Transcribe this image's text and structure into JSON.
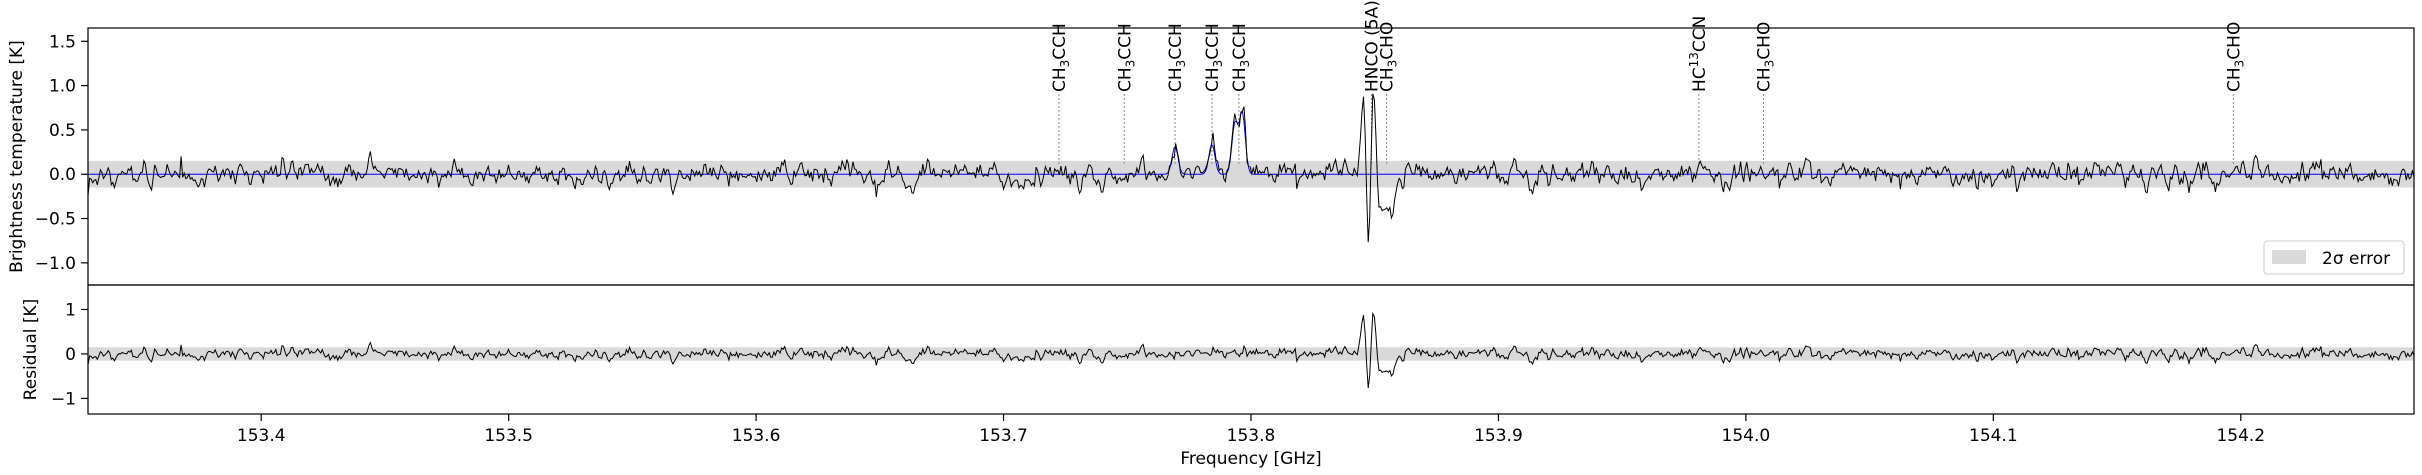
{
  "chart_data": [
    {
      "type": "line",
      "panel": "spectrum",
      "ylabel": "Brightness temperature [K]",
      "xlim": [
        153.33,
        154.27
      ],
      "ylim": [
        -1.25,
        1.65
      ],
      "yticks": [
        -1.0,
        -0.5,
        0.0,
        0.5,
        1.0,
        1.5
      ],
      "ytick_labels": [
        "−1.0",
        "−0.5",
        "0.0",
        "0.5",
        "1.0",
        "1.5"
      ],
      "error_band": [
        -0.15,
        0.15
      ],
      "legend": {
        "label": "2σ error",
        "placement": "lower-right"
      },
      "grid": false,
      "colors": {
        "data": "#000000",
        "model": "#0000ff",
        "band": "#d9d9d9",
        "marker": "#888888"
      },
      "line_markers": [
        {
          "freq": 153.7224,
          "label_main": "CH",
          "label_sub": "3",
          "label_tail": "CCH"
        },
        {
          "freq": 153.7488,
          "label_main": "CH",
          "label_sub": "3",
          "label_tail": "CCH"
        },
        {
          "freq": 153.7693,
          "label_main": "CH",
          "label_sub": "3",
          "label_tail": "CCH"
        },
        {
          "freq": 153.7842,
          "label_main": "CH",
          "label_sub": "3",
          "label_tail": "CCH"
        },
        {
          "freq": 153.7951,
          "label_main": "CH",
          "label_sub": "3",
          "label_tail": "CCH"
        },
        {
          "freq": 153.8487,
          "label_main": "HNCO (5A)",
          "label_sub": "",
          "label_tail": ""
        },
        {
          "freq": 153.8548,
          "label_main": "CH",
          "label_sub": "3",
          "label_tail": "CHO"
        },
        {
          "freq": 153.981,
          "label_main": "HC",
          "label_sup": "13",
          "label_tail": "CCN"
        },
        {
          "freq": 154.0071,
          "label_main": "CH",
          "label_sub": "3",
          "label_tail": "CHO"
        },
        {
          "freq": 154.197,
          "label_main": "CH",
          "label_sub": "3",
          "label_tail": "CHO"
        }
      ],
      "series": [
        {
          "name": "",
          "role": "observed",
          "note_seed": 11,
          "noise_sigma": 0.06
        },
        {
          "name": "",
          "role": "model"
        }
      ],
      "features": [
        {
          "freq": 153.7693,
          "amp": 0.33,
          "width": 0.0012
        },
        {
          "freq": 153.7842,
          "amp": 0.36,
          "width": 0.0012
        },
        {
          "freq": 153.7935,
          "amp": 0.6,
          "width": 0.0012
        },
        {
          "freq": 153.7965,
          "amp": 0.72,
          "width": 0.0012
        },
        {
          "freq": 153.8495,
          "amp": 1.1,
          "width": 0.001
        },
        {
          "freq": 153.8455,
          "amp": 0.95,
          "width": 0.001
        },
        {
          "freq": 153.8475,
          "amp": -1.05,
          "width": 0.0008
        },
        {
          "freq": 153.852,
          "amp": -0.45,
          "width": 0.0015
        },
        {
          "freq": 153.856,
          "amp": -0.45,
          "width": 0.002
        }
      ]
    },
    {
      "type": "line",
      "panel": "residual",
      "ylabel": "Residual [K]",
      "xlabel": "Frequency [GHz]",
      "xlim": [
        153.33,
        154.27
      ],
      "ylim": [
        -1.35,
        1.55
      ],
      "yticks": [
        -1,
        0,
        1
      ],
      "ytick_labels": [
        "−1",
        "0",
        "1"
      ],
      "xticks": [
        153.4,
        153.5,
        153.6,
        153.7,
        153.8,
        153.9,
        154.0,
        154.1,
        154.2
      ],
      "xtick_labels": [
        "153.4",
        "153.5",
        "153.6",
        "153.7",
        "153.8",
        "153.9",
        "154.0",
        "154.1",
        "154.2"
      ],
      "error_band": [
        -0.15,
        0.15
      ],
      "grid": false
    }
  ]
}
